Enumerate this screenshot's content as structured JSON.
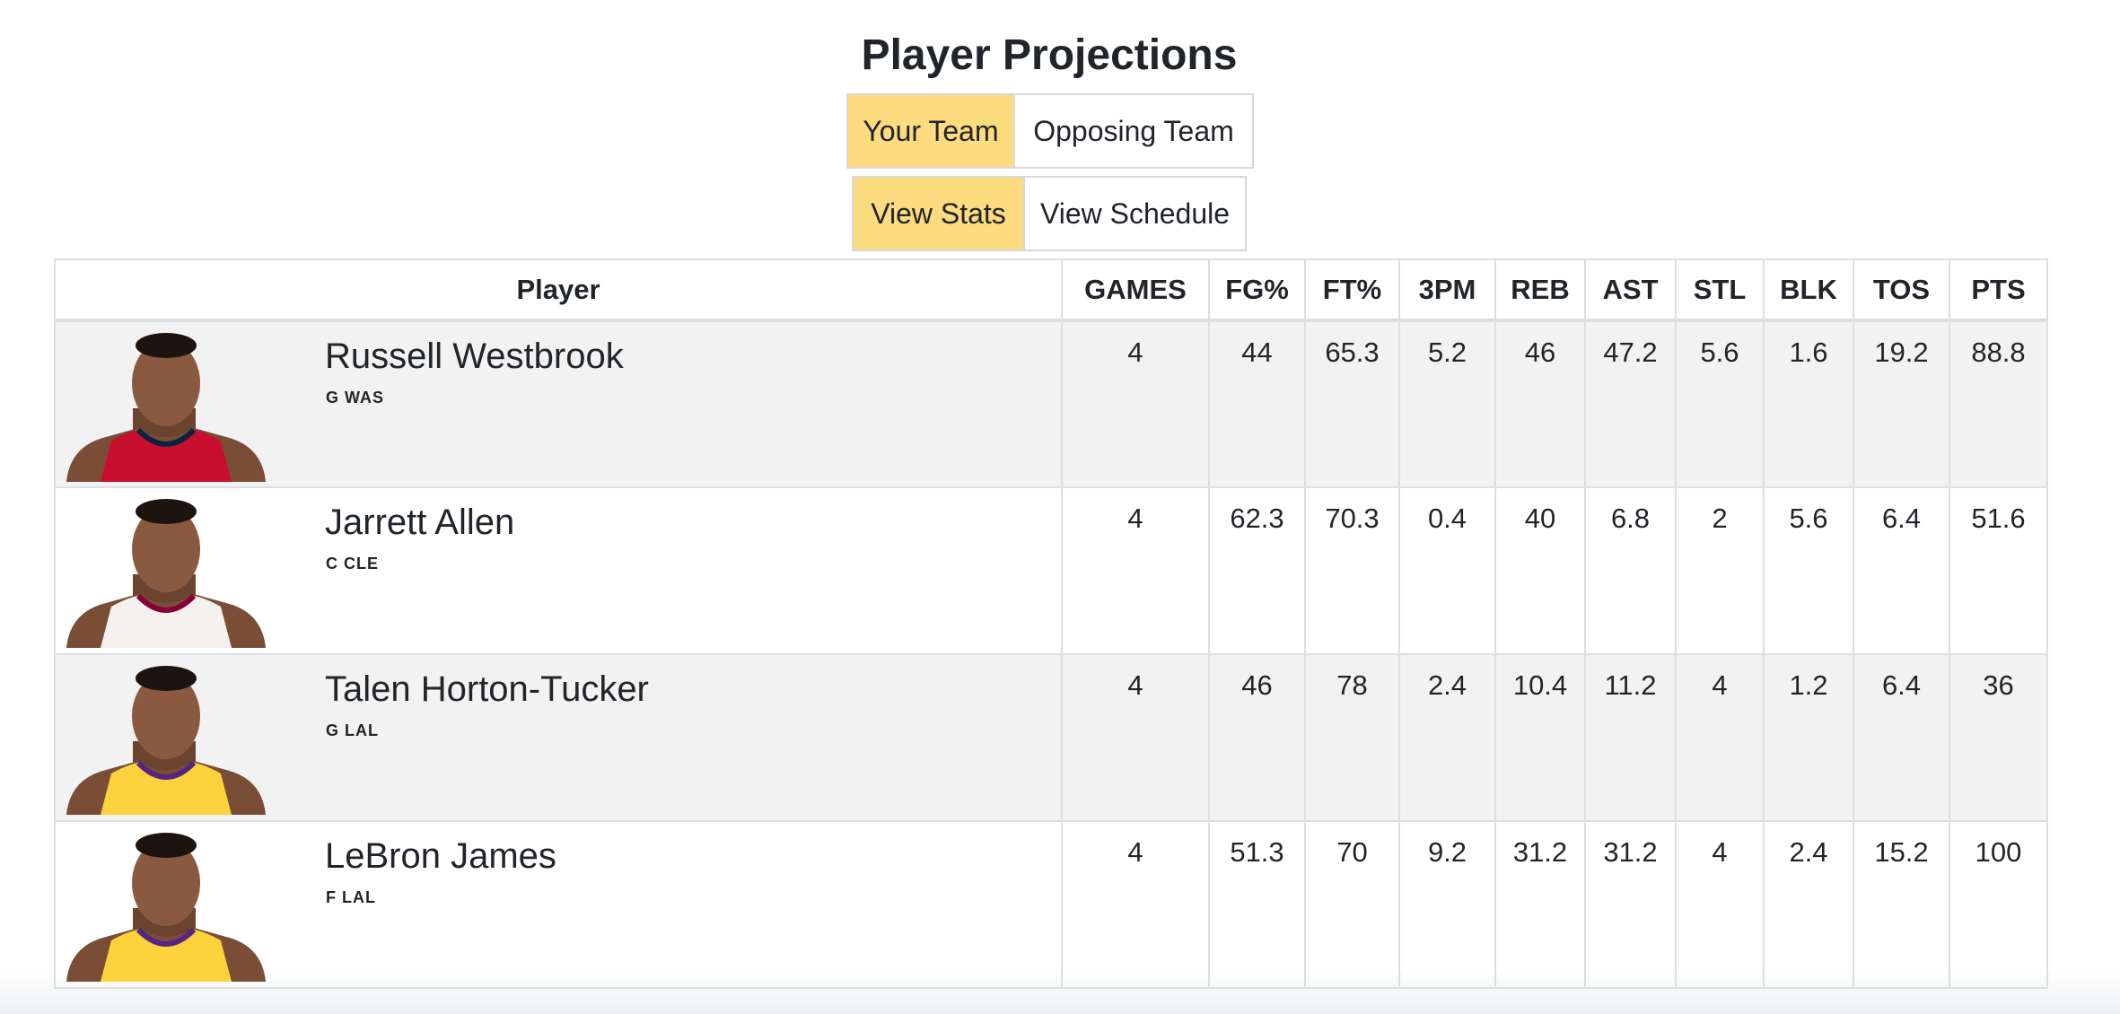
{
  "title": "Player Projections",
  "team_toggle": {
    "active": "Your Team",
    "inactive": "Opposing Team"
  },
  "view_toggle": {
    "active": "View Stats",
    "inactive": "View Schedule"
  },
  "columns": [
    "Player",
    "GAMES",
    "FG%",
    "FT%",
    "3PM",
    "REB",
    "AST",
    "STL",
    "BLK",
    "TOS",
    "PTS"
  ],
  "players": [
    {
      "name": "Russell Westbrook",
      "meta": "G WAS",
      "jersey": "#c8102e",
      "jersey_trim": "#0c2340",
      "stats": [
        "4",
        "44",
        "65.3",
        "5.2",
        "46",
        "47.2",
        "5.6",
        "1.6",
        "19.2",
        "88.8"
      ]
    },
    {
      "name": "Jarrett Allen",
      "meta": "C CLE",
      "jersey": "#f4f1ee",
      "jersey_trim": "#860038",
      "stats": [
        "4",
        "62.3",
        "70.3",
        "0.4",
        "40",
        "6.8",
        "2",
        "5.6",
        "6.4",
        "51.6"
      ]
    },
    {
      "name": "Talen Horton-Tucker",
      "meta": "G LAL",
      "jersey": "#fdd23c",
      "jersey_trim": "#552583",
      "stats": [
        "4",
        "46",
        "78",
        "2.4",
        "10.4",
        "11.2",
        "4",
        "1.2",
        "6.4",
        "36"
      ]
    },
    {
      "name": "LeBron James",
      "meta": "F LAL",
      "jersey": "#fdd23c",
      "jersey_trim": "#552583",
      "stats": [
        "4",
        "51.3",
        "70",
        "9.2",
        "31.2",
        "31.2",
        "4",
        "2.4",
        "15.2",
        "100"
      ]
    }
  ],
  "colors": {
    "accent": "#fddb7f",
    "stripe": "#f2f2f2",
    "border": "#dcdfe2"
  }
}
